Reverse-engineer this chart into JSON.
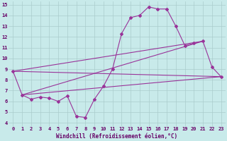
{
  "xlabel": "Windchill (Refroidissement éolien,°C)",
  "bg_color": "#c8eaea",
  "grid_color": "#aacccc",
  "line_color": "#993399",
  "xlim": [
    -0.5,
    23.5
  ],
  "ylim": [
    3.7,
    15.3
  ],
  "xticks": [
    0,
    1,
    2,
    3,
    4,
    5,
    6,
    7,
    8,
    9,
    10,
    11,
    12,
    13,
    14,
    15,
    16,
    17,
    18,
    19,
    20,
    21,
    22,
    23
  ],
  "yticks": [
    4,
    5,
    6,
    7,
    8,
    9,
    10,
    11,
    12,
    13,
    14,
    15
  ],
  "series1_x": [
    0,
    1,
    2,
    3,
    4,
    5,
    6,
    7,
    8,
    9,
    10,
    11,
    12,
    13,
    14,
    15,
    16,
    17,
    18,
    19,
    20,
    21,
    22,
    23
  ],
  "series1_y": [
    8.8,
    6.6,
    6.2,
    6.4,
    6.3,
    6.0,
    6.5,
    4.6,
    4.5,
    6.2,
    7.4,
    9.0,
    12.3,
    13.8,
    14.0,
    14.8,
    14.6,
    14.6,
    13.0,
    11.2,
    11.4,
    11.6,
    9.2,
    8.3
  ],
  "line1_x": [
    0,
    23
  ],
  "line1_y": [
    8.8,
    8.3
  ],
  "line2_x": [
    1,
    23
  ],
  "line2_y": [
    6.6,
    8.3
  ],
  "line3_x": [
    0,
    21
  ],
  "line3_y": [
    8.8,
    11.6
  ],
  "line4_x": [
    1,
    21
  ],
  "line4_y": [
    6.6,
    11.6
  ]
}
